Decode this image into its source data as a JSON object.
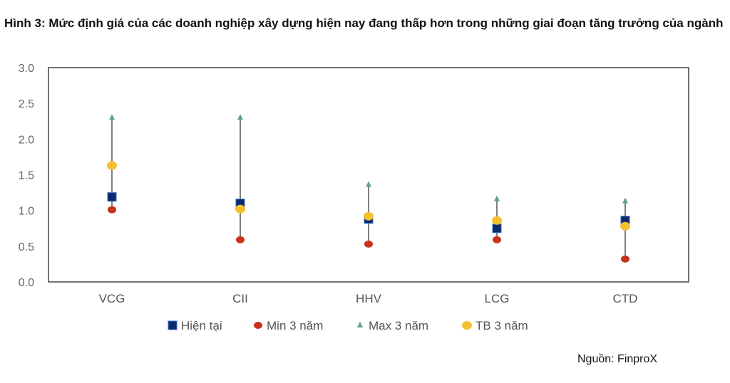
{
  "title": "Hình 3: Mức định giá của các doanh nghiệp xây dựng hiện nay đang thấp hơn trong những giai đoạn tăng trưởng của ngành",
  "source": "Nguồn: FinproX",
  "chart_data": {
    "type": "scatter",
    "categories": [
      "VCG",
      "CII",
      "HHV",
      "LCG",
      "CTD"
    ],
    "ylim": [
      0,
      3.0
    ],
    "yticks": [
      "0.0",
      "0.5",
      "1.0",
      "1.5",
      "2.0",
      "2.5",
      "3.0"
    ],
    "grid": false,
    "legend_position": "bottom",
    "series": [
      {
        "name": "Hiện tại",
        "marker": "square",
        "color": "#0b2a6b",
        "values": [
          1.19,
          1.1,
          0.88,
          0.75,
          0.86
        ]
      },
      {
        "name": "Min 3 năm",
        "marker": "circle",
        "color": "#c8321a",
        "values": [
          1.01,
          0.59,
          0.53,
          0.59,
          0.32
        ]
      },
      {
        "name": "Max 3 năm",
        "marker": "triangle",
        "color": "#5fa57a",
        "values": [
          2.3,
          2.3,
          1.36,
          1.16,
          1.13
        ]
      },
      {
        "name": "TB 3 năm",
        "marker": "circle",
        "color": "#f4c030",
        "values": [
          1.63,
          1.02,
          0.92,
          0.86,
          0.78
        ]
      }
    ]
  }
}
